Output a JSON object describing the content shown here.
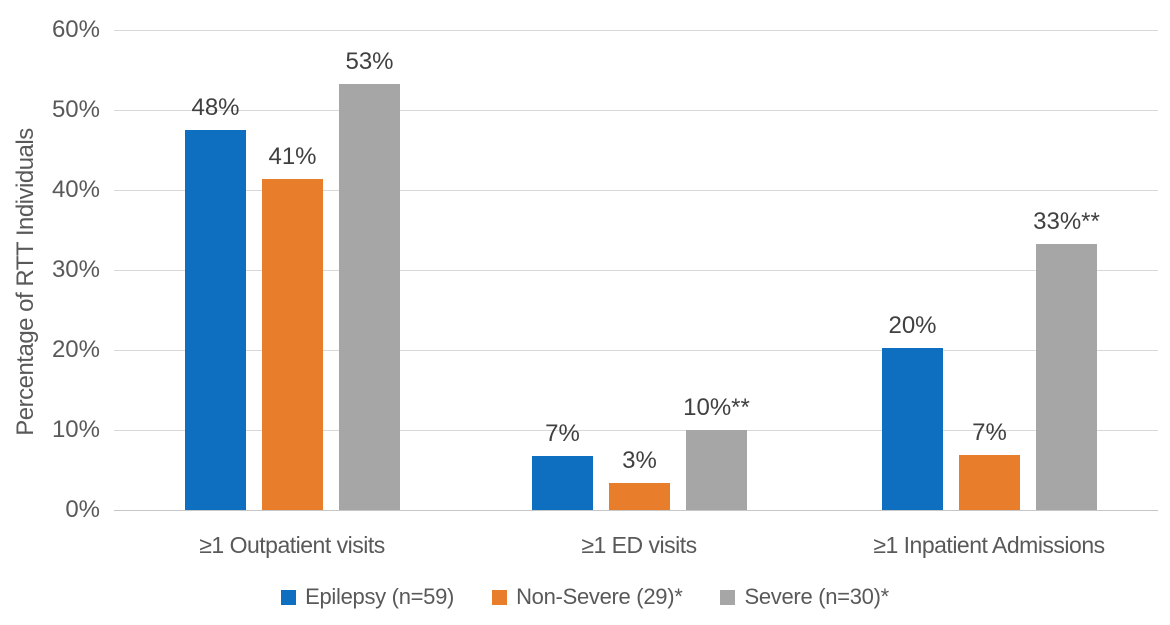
{
  "chart_data": {
    "type": "bar",
    "title": "",
    "xlabel": "",
    "ylabel": "Percentage of RTT Individuals",
    "ylim": [
      0,
      60
    ],
    "ytick_labels": [
      "0%",
      "10%",
      "20%",
      "30%",
      "40%",
      "50%",
      "60%"
    ],
    "grid": true,
    "legend_position": "bottom",
    "categories": [
      "≥1 Outpatient visits",
      "≥1 ED visits",
      "≥1 Inpatient Admissions"
    ],
    "series": [
      {
        "name": "Epilepsy (n=59)",
        "color": "#0E6FC1",
        "values": [
          48,
          7,
          20
        ],
        "bar_heights_pct": [
          47.5,
          6.8,
          20.3
        ],
        "data_labels": [
          "48%",
          "7%",
          "20%"
        ]
      },
      {
        "name": "Non-Severe (29)*",
        "color": "#E87D2B",
        "values": [
          41,
          3,
          7
        ],
        "bar_heights_pct": [
          41.4,
          3.4,
          6.9
        ],
        "data_labels": [
          "41%",
          "3%",
          "7%"
        ]
      },
      {
        "name": "Severe (n=30)*",
        "color": "#A6A6A6",
        "values": [
          53,
          10,
          33
        ],
        "bar_heights_pct": [
          53.3,
          10,
          33.3
        ],
        "data_labels": [
          "53%",
          "10%**",
          "33%**"
        ]
      }
    ]
  },
  "colors": {
    "background": "#FFFFFF",
    "gridline": "#D9D9D9",
    "axis_line": "#C6C6C6",
    "tick_label": "#595959",
    "category_label": "#595959",
    "data_label": "#404040",
    "legend_label": "#595959"
  }
}
